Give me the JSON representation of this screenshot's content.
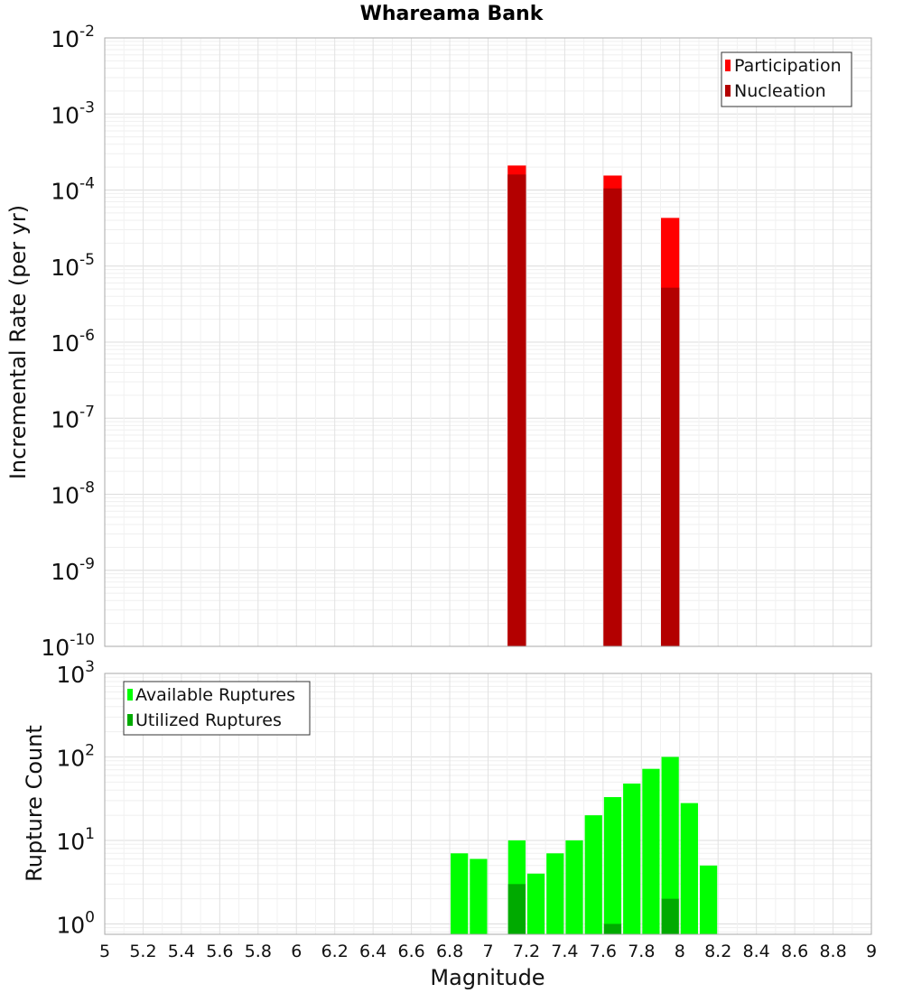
{
  "chart_data": [
    {
      "type": "bar",
      "title": "Whareama Bank",
      "xlabel": "Magnitude",
      "ylabel": "Incremental Rate (per yr)",
      "y_scale": "log",
      "ylim": [
        1e-10,
        0.01
      ],
      "xlim": [
        5,
        9
      ],
      "bin_width": 0.1,
      "ytick_exponents": [
        "-10",
        "-9",
        "-8",
        "-7",
        "-6",
        "-5",
        "-4",
        "-3",
        "-2"
      ],
      "grid": true,
      "legend_position": "top-right",
      "series": [
        {
          "name": "Participation",
          "color": "#ff0000",
          "x": [
            7.15,
            7.65,
            7.95
          ],
          "values": [
            0.00021,
            0.000155,
            4.3e-05
          ]
        },
        {
          "name": "Nucleation",
          "color": "#b30000",
          "x": [
            7.15,
            7.65,
            7.95
          ],
          "values": [
            0.00016,
            0.000105,
            5.2e-06
          ]
        }
      ]
    },
    {
      "type": "bar",
      "xlabel": "Magnitude",
      "ylabel": "Rupture Count",
      "y_scale": "log",
      "ylim": [
        0.75,
        1000
      ],
      "xlim": [
        5,
        9
      ],
      "bin_width": 0.1,
      "ytick_exponents": [
        "0",
        "1",
        "2",
        "3"
      ],
      "xticks": [
        "5",
        "5.2",
        "5.4",
        "5.6",
        "5.8",
        "6",
        "6.2",
        "6.4",
        "6.6",
        "6.8",
        "7",
        "7.2",
        "7.4",
        "7.6",
        "7.8",
        "8",
        "8.2",
        "8.4",
        "8.6",
        "8.8",
        "9"
      ],
      "grid": true,
      "legend_position": "top-left",
      "series": [
        {
          "name": "Available Ruptures",
          "color": "#00ff00",
          "x": [
            6.85,
            6.95,
            7.15,
            7.25,
            7.35,
            7.45,
            7.55,
            7.65,
            7.75,
            7.85,
            7.95,
            8.05,
            8.15
          ],
          "values": [
            7,
            6,
            10,
            4,
            7,
            10,
            20,
            33,
            48,
            72,
            100,
            28,
            5
          ]
        },
        {
          "name": "Utilized Ruptures",
          "color": "#00aa00",
          "x": [
            7.15,
            7.65,
            7.95
          ],
          "values": [
            3,
            1,
            2
          ]
        }
      ]
    }
  ]
}
